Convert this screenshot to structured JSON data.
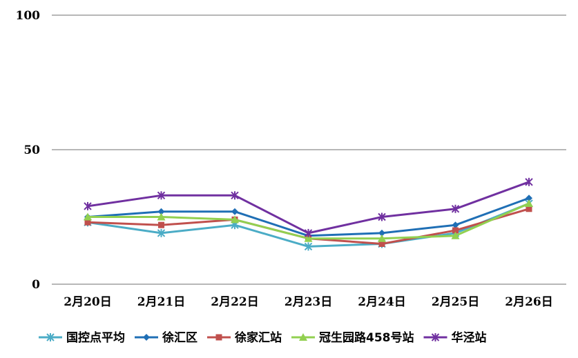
{
  "chart_data": {
    "type": "line",
    "title": "",
    "xlabel": "",
    "ylabel": "",
    "categories": [
      "2月20日",
      "2月21日",
      "2月22日",
      "2月23日",
      "2月24日",
      "2月25日",
      "2月26日"
    ],
    "ylim": [
      0,
      100
    ],
    "yticks": [
      "0",
      "50",
      "100"
    ],
    "grid": true,
    "legend_position": "bottom",
    "series": [
      {
        "name": "国控点平均",
        "color": "#4BACC6",
        "marker": "asterisk",
        "values": [
          23,
          19,
          22,
          14,
          15,
          19,
          30
        ]
      },
      {
        "name": "徐汇区",
        "color": "#1F6FB5",
        "marker": "diamond",
        "values": [
          25,
          27,
          27,
          18,
          19,
          22,
          32
        ]
      },
      {
        "name": "徐家汇站",
        "color": "#C0504D",
        "marker": "square",
        "values": [
          23,
          22,
          24,
          17,
          15,
          20,
          28
        ]
      },
      {
        "name": "冠生园路458号站",
        "color": "#92D050",
        "marker": "triangle",
        "values": [
          25,
          25,
          24,
          17,
          17,
          18,
          30
        ]
      },
      {
        "name": "华泾站",
        "color": "#7030A0",
        "marker": "asterisk",
        "values": [
          29,
          33,
          33,
          19,
          25,
          28,
          38
        ]
      }
    ]
  }
}
